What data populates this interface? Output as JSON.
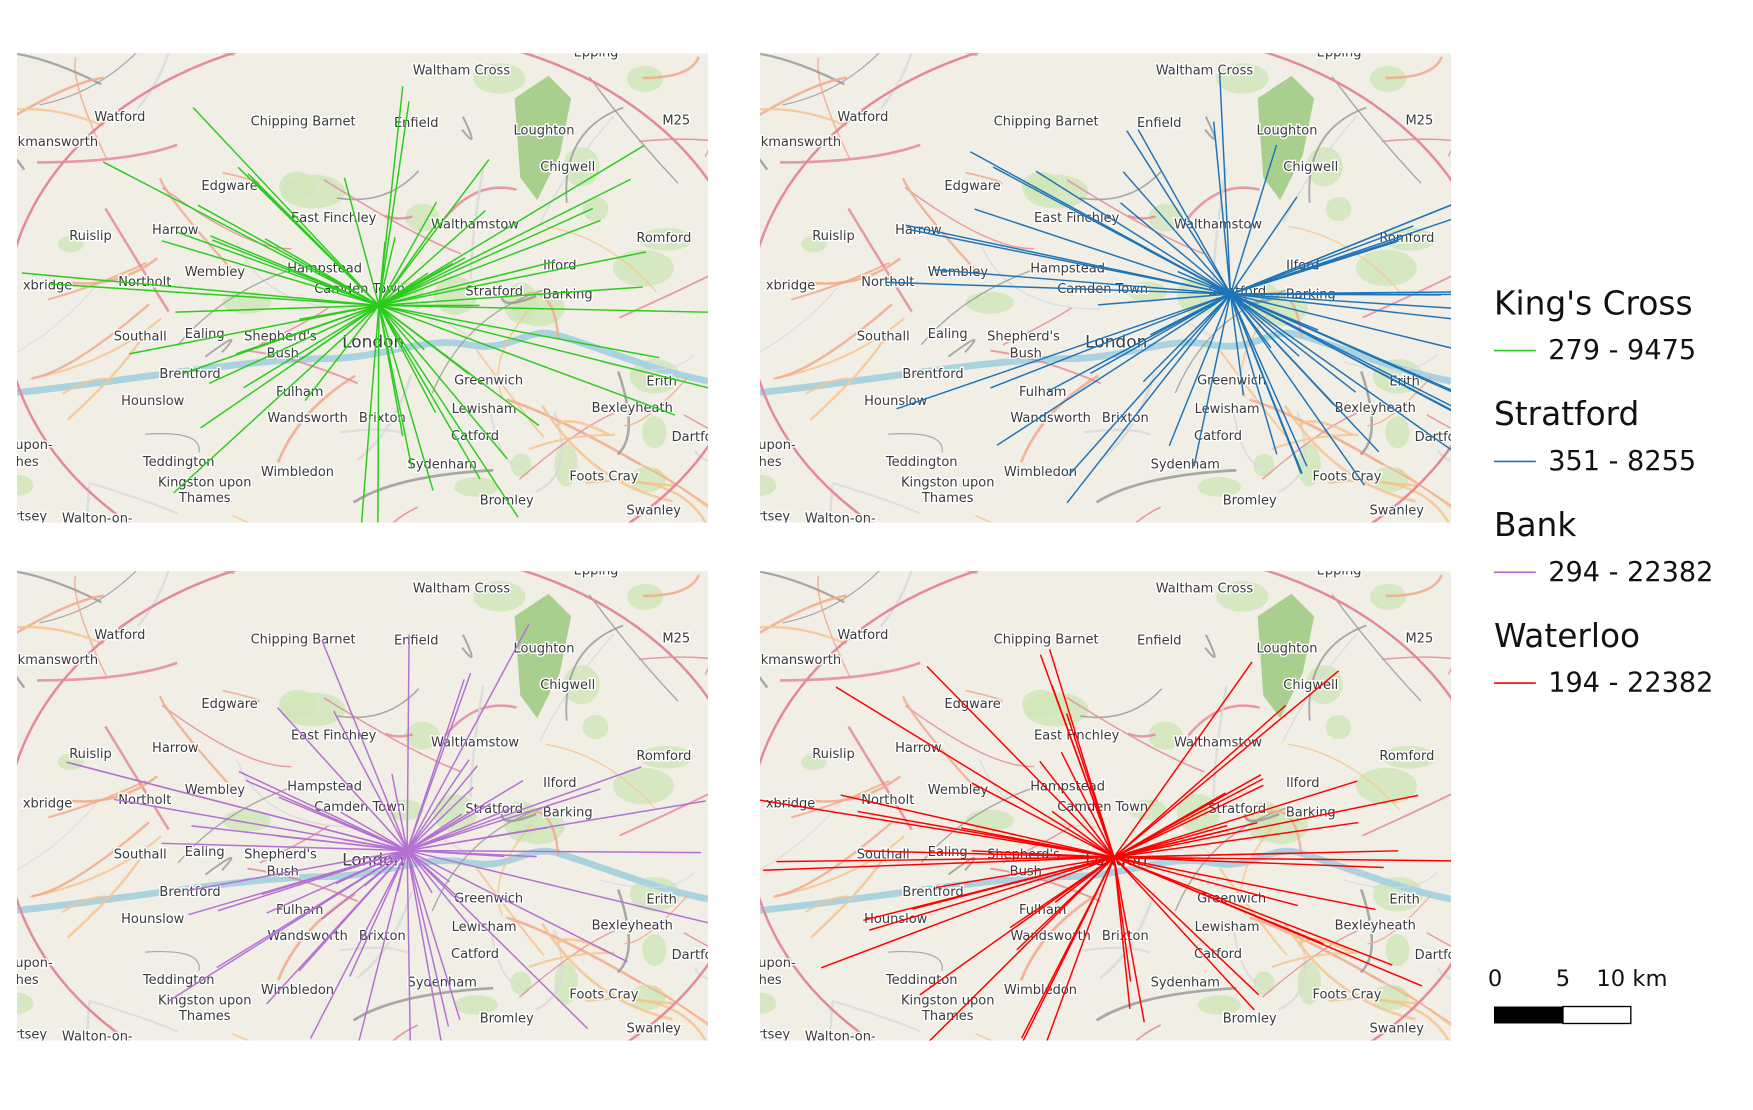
{
  "maps": [
    {
      "title": "King's Cross",
      "range": "279 - 9475",
      "color": "#2bcc1c"
    },
    {
      "title": "Stratford",
      "range": "351 - 8255",
      "color": "#1f74b8"
    },
    {
      "title": "Bank",
      "range": "294 - 22382",
      "color": "#b470d2"
    },
    {
      "title": "Waterloo",
      "range": "194 - 22382",
      "color": "#ff0000"
    }
  ],
  "place_labels": [
    "Epping",
    "Waltham Cross",
    "Watford",
    "Chipping Barnet",
    "Enfield",
    "Loughton",
    "M25",
    "ckmansworth",
    "Chigwell",
    "Edgware",
    "East Finchley",
    "Walthamstow",
    "Romford",
    "Ruislip",
    "Harrow",
    "Hampstead",
    "Ilford",
    "Northolt",
    "Wembley",
    "xbridge",
    "Camden Town",
    "Stratford",
    "Barking",
    "Southall",
    "Ealing",
    "Shepherd's",
    "Bush",
    "London",
    "Brentford",
    "Greenwich",
    "Erith",
    "Hounslow",
    "Fulham",
    "Lewisham",
    "Bexleyheath",
    "Wandsworth",
    "Brixton",
    "Catford",
    "Dartfo",
    "upon-",
    "hes",
    "Teddington",
    "Sydenham",
    "Wimbledon",
    "Kingston upon",
    "Thames",
    "Foots Cray",
    "Bromley",
    "Swanley",
    "rtsey",
    "Walton-on-"
  ],
  "scale_bar": {
    "labels": [
      "0",
      "5",
      "10 km"
    ]
  }
}
